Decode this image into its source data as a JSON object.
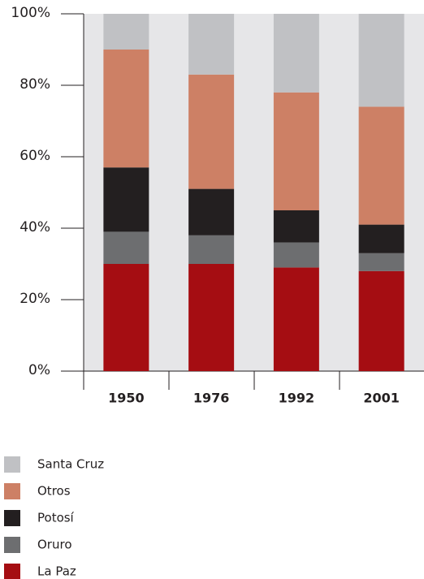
{
  "chart_data": {
    "type": "stacked_bar",
    "categories": [
      "1950",
      "1976",
      "1992",
      "2001"
    ],
    "series": [
      {
        "name": "La Paz",
        "color": "#a50d12",
        "values": [
          30,
          30,
          29,
          28
        ]
      },
      {
        "name": "Oruro",
        "color": "#6d6e70",
        "values": [
          9,
          8,
          7,
          5
        ]
      },
      {
        "name": "Potosí",
        "color": "#231f20",
        "values": [
          18,
          13,
          9,
          8
        ]
      },
      {
        "name": "Otros",
        "color": "#cd8065",
        "values": [
          33,
          32,
          33,
          33
        ]
      },
      {
        "name": "Santa Cruz",
        "color": "#c0c1c4",
        "values": [
          10,
          17,
          22,
          26
        ]
      }
    ],
    "ylim": [
      0,
      100
    ],
    "yticks": [
      {
        "value": 0,
        "label": "0%"
      },
      {
        "value": 20,
        "label": "20%"
      },
      {
        "value": 40,
        "label": "40%"
      },
      {
        "value": 60,
        "label": "60%"
      },
      {
        "value": 80,
        "label": "80%"
      },
      {
        "value": 100,
        "label": "100%"
      }
    ],
    "legend": "bottom-left"
  }
}
